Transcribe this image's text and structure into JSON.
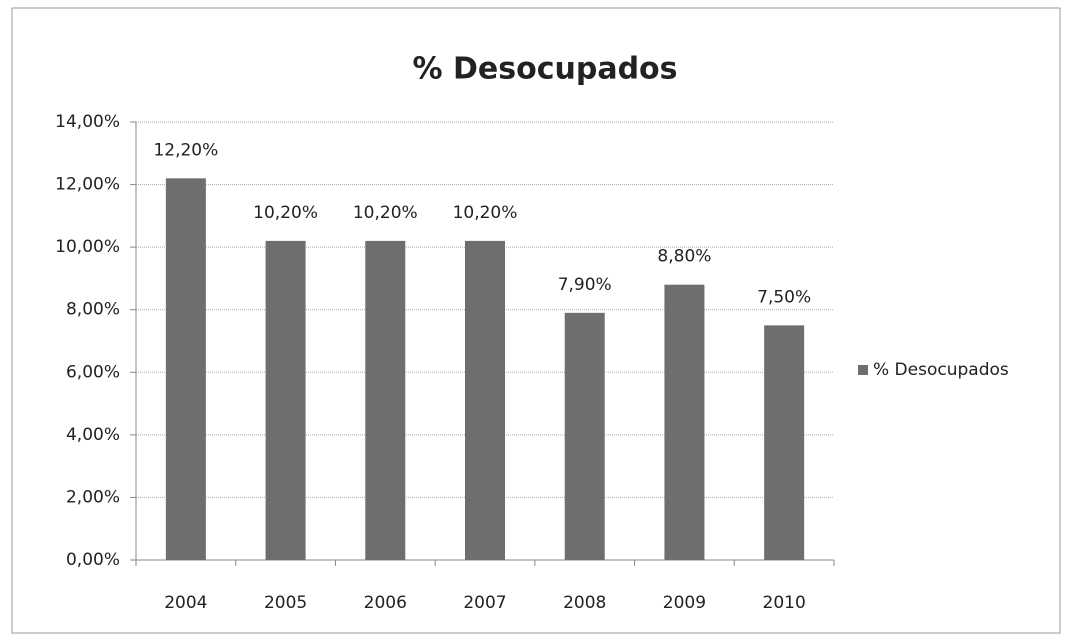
{
  "chart_data": {
    "type": "bar",
    "title": "% Desocupados",
    "categories": [
      "2004",
      "2005",
      "2006",
      "2007",
      "2008",
      "2009",
      "2010"
    ],
    "series": [
      {
        "name": "% Desocupados",
        "color": "#6e6e6e",
        "values": [
          12.2,
          10.2,
          10.2,
          10.2,
          7.9,
          8.8,
          7.5
        ],
        "value_labels": [
          "12,20%",
          "10,20%",
          "10,20%",
          "10,20%",
          "7,90%",
          "8,80%",
          "7,50%"
        ]
      }
    ],
    "ylim": [
      0,
      14
    ],
    "yticks": [
      {
        "value": 0,
        "label": "0,00%"
      },
      {
        "value": 2,
        "label": "2,00%"
      },
      {
        "value": 4,
        "label": "4,00%"
      },
      {
        "value": 6,
        "label": "6,00%"
      },
      {
        "value": 8,
        "label": "8,00%"
      },
      {
        "value": 10,
        "label": "10,00%"
      },
      {
        "value": 12,
        "label": "12,00%"
      },
      {
        "value": 14,
        "label": "14,00%"
      }
    ],
    "grid": true,
    "legend": "right"
  }
}
